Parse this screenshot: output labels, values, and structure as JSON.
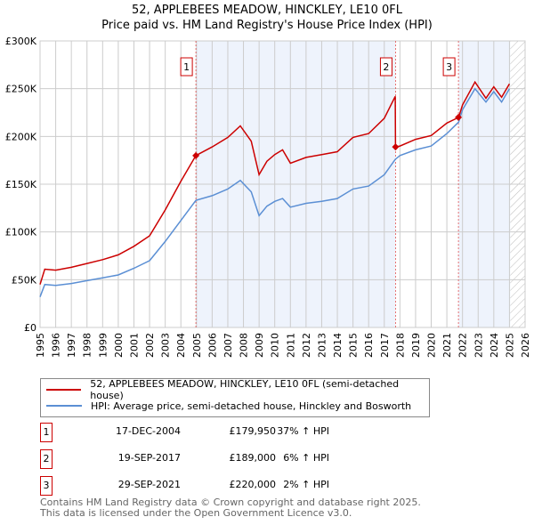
{
  "chart_data": {
    "type": "line",
    "title": "52, APPLEBEES MEADOW, HINCKLEY, LE10 0FL",
    "subtitle": "Price paid vs. HM Land Registry's House Price Index (HPI)",
    "xlim": [
      1995,
      2026
    ],
    "ylim": [
      0,
      300000
    ],
    "x_ticks": [
      "1995",
      "1996",
      "1997",
      "1998",
      "1999",
      "2000",
      "2001",
      "2002",
      "2003",
      "2004",
      "2005",
      "2006",
      "2007",
      "2008",
      "2009",
      "2010",
      "2011",
      "2012",
      "2013",
      "2014",
      "2015",
      "2016",
      "2017",
      "2018",
      "2019",
      "2020",
      "2021",
      "2022",
      "2023",
      "2024",
      "2025",
      "2026"
    ],
    "y_ticks": [
      {
        "v": 0,
        "label": "£0"
      },
      {
        "v": 50000,
        "label": "£50K"
      },
      {
        "v": 100000,
        "label": "£100K"
      },
      {
        "v": 150000,
        "label": "£150K"
      },
      {
        "v": 200000,
        "label": "£200K"
      },
      {
        "v": 250000,
        "label": "£250K"
      },
      {
        "v": 300000,
        "label": "£300K"
      }
    ],
    "grid": true,
    "data_end": 2025.05,
    "series": [
      {
        "name": "52, APPLEBEES MEADOW, HINCKLEY, LE10 0FL (semi-detached house)",
        "color": "#cc0000",
        "x": [
          1995,
          1995.3,
          1996,
          1997,
          1998,
          1999,
          2000,
          2001,
          2002,
          2003,
          2004,
          2004.96,
          2006,
          2007,
          2007.8,
          2008.5,
          2009,
          2009.5,
          2010,
          2010.5,
          2011,
          2012,
          2013,
          2014,
          2015,
          2016,
          2017,
          2017.7,
          2017.72,
          2018,
          2019,
          2020,
          2021,
          2021.75,
          2022,
          2022.8,
          2023.5,
          2024,
          2024.5,
          2025
        ],
        "y": [
          45000,
          61000,
          60000,
          63000,
          67000,
          71000,
          76000,
          85000,
          96000,
          123000,
          153000,
          180000,
          189000,
          199000,
          211000,
          195000,
          160000,
          174000,
          181000,
          186000,
          172000,
          178000,
          181000,
          184000,
          199000,
          203000,
          219000,
          242000,
          189000,
          190000,
          197000,
          201000,
          214000,
          220000,
          233000,
          257000,
          240000,
          252000,
          241000,
          255000
        ]
      },
      {
        "name": "HPI: Average price, semi-detached house, Hinckley and Bosworth",
        "color": "#5b8fd4",
        "x": [
          1995,
          1995.3,
          1996,
          1997,
          1998,
          1999,
          2000,
          2001,
          2002,
          2003,
          2004,
          2004.96,
          2006,
          2007,
          2007.8,
          2008.5,
          2009,
          2009.5,
          2010,
          2010.5,
          2011,
          2012,
          2013,
          2014,
          2015,
          2016,
          2017,
          2017.7,
          2018,
          2019,
          2020,
          2021,
          2021.75,
          2022,
          2022.8,
          2023.5,
          2024,
          2024.5,
          2025
        ],
        "y": [
          32000,
          45000,
          44000,
          46000,
          49000,
          52000,
          55000,
          62000,
          70000,
          90000,
          112000,
          133000,
          138000,
          145000,
          154000,
          142000,
          117000,
          127000,
          132000,
          135000,
          126000,
          130000,
          132000,
          135000,
          145000,
          148000,
          160000,
          176000,
          180000,
          186000,
          190000,
          203000,
          215000,
          228000,
          250000,
          236000,
          247000,
          236000,
          250000
        ]
      }
    ],
    "sales": [
      {
        "n": "1",
        "x": 2004.96,
        "y": 179950,
        "date": "17-DEC-2004",
        "price": "£179,950",
        "hpi": "37% ↑ HPI"
      },
      {
        "n": "2",
        "x": 2017.72,
        "y": 189000,
        "date": "19-SEP-2017",
        "price": "£189,000",
        "hpi": "6% ↑ HPI"
      },
      {
        "n": "3",
        "x": 2021.74,
        "y": 220000,
        "date": "29-SEP-2021",
        "price": "£220,000",
        "hpi": "2% ↑ HPI"
      }
    ]
  },
  "footer": {
    "line1": "Contains HM Land Registry data © Crown copyright and database right 2025.",
    "line2": "This data is licensed under the Open Government Licence v3.0."
  }
}
